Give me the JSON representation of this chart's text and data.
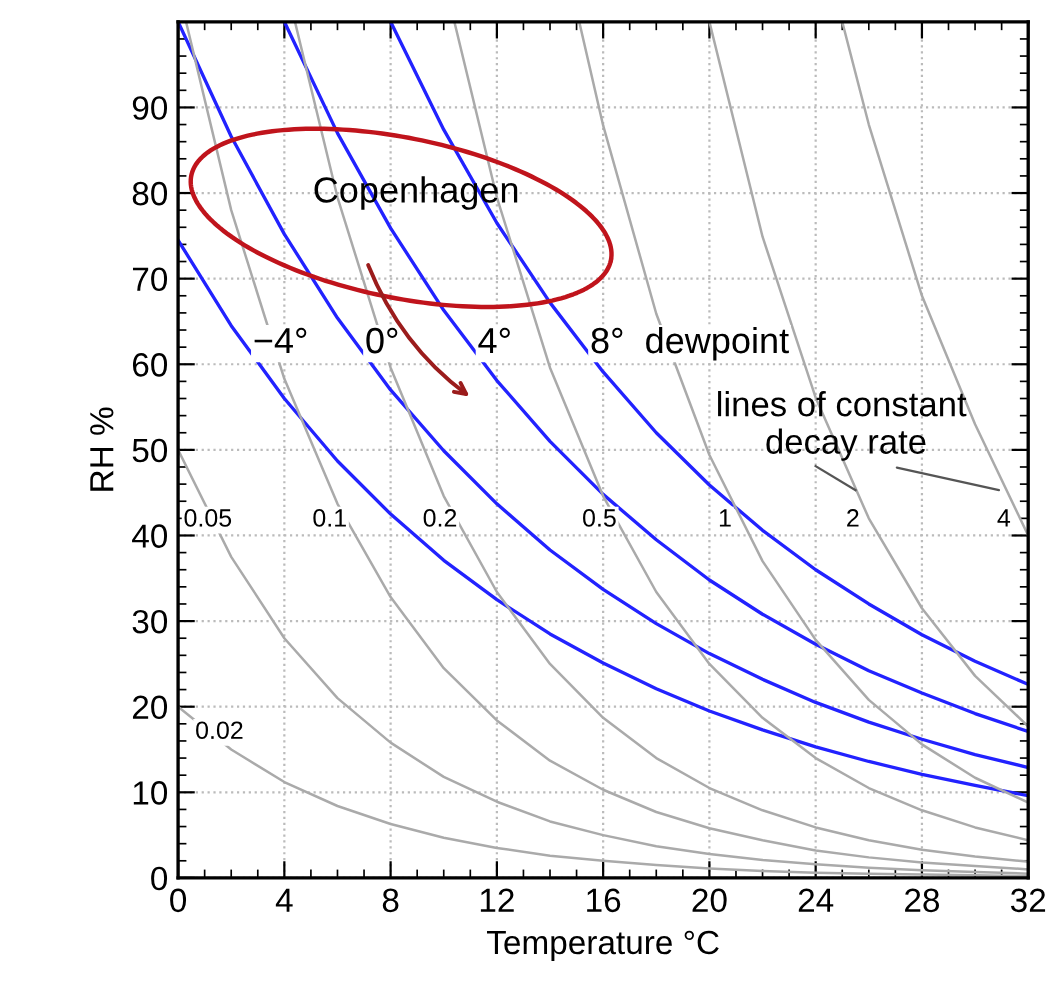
{
  "chart_data": {
    "type": "line",
    "xlabel": "Temperature °C",
    "ylabel": "RH %",
    "xlim": [
      0,
      32
    ],
    "xticks": [
      0,
      4,
      8,
      12,
      16,
      20,
      24,
      28,
      32
    ],
    "ylim": [
      0,
      100
    ],
    "yticks": [
      0,
      10,
      20,
      30,
      40,
      50,
      60,
      70,
      80,
      90
    ],
    "grid": true,
    "legend": false,
    "marker": "none",
    "line_style": "solid",
    "series": [
      {
        "name": "−4°",
        "color": "#2222ff",
        "x": [
          0,
          2,
          4,
          6,
          8,
          10,
          12,
          14,
          16,
          18,
          20,
          22,
          24,
          26,
          28,
          30,
          32
        ],
        "values": [
          74.5,
          64.5,
          56,
          48.7,
          42.5,
          37.1,
          32.5,
          28.5,
          25.1,
          22.1,
          19.5,
          17.3,
          15.3,
          13.6,
          12.1,
          10.8,
          9.6
        ]
      },
      {
        "name": "0°",
        "color": "#2222ff",
        "x": [
          0,
          2,
          4,
          6,
          8,
          10,
          12,
          14,
          16,
          18,
          20,
          22,
          24,
          26,
          28,
          30,
          32
        ],
        "values": [
          100,
          86.6,
          75.2,
          65.4,
          57,
          49.9,
          43.7,
          38.3,
          33.7,
          29.7,
          26.2,
          23.2,
          20.5,
          18.2,
          16.2,
          14.4,
          12.9
        ]
      },
      {
        "name": "4°",
        "color": "#2222ff",
        "x": [
          4,
          6,
          8,
          10,
          12,
          14,
          16,
          18,
          20,
          22,
          24,
          26,
          28,
          30,
          32
        ],
        "values": [
          100,
          87,
          75.9,
          66.3,
          58.1,
          51,
          44.8,
          39.5,
          34.8,
          30.8,
          27.3,
          24.2,
          21.6,
          19.2,
          17.1
        ]
      },
      {
        "name": "8°  dewpoint",
        "color": "#2222ff",
        "x": [
          8,
          10,
          12,
          14,
          16,
          18,
          20,
          22,
          24,
          26,
          28,
          30,
          32
        ],
        "values": [
          100,
          87.4,
          76.5,
          67.2,
          59.1,
          52,
          45.9,
          40.6,
          36,
          32,
          28.4,
          25.3,
          22.6
        ]
      },
      {
        "name": "0.02",
        "color": "#aaaaaa",
        "x": [
          0,
          2,
          4,
          6,
          8,
          10,
          12,
          14,
          16,
          18,
          20,
          22,
          24,
          26,
          28,
          30,
          32
        ],
        "values": [
          20,
          15,
          11.2,
          8.4,
          6.3,
          4.7,
          3.5,
          2.6,
          2,
          1.5,
          1.1,
          0.8,
          0.6,
          0.5,
          0.4,
          0.3,
          0.2
        ]
      },
      {
        "name": "0.05",
        "color": "#aaaaaa",
        "x": [
          0,
          2,
          4,
          6,
          8,
          10,
          12,
          14,
          16,
          18,
          20,
          22,
          24,
          26,
          28,
          30,
          32
        ],
        "values": [
          50,
          37.5,
          28,
          21,
          15.8,
          11.8,
          8.9,
          6.6,
          5,
          3.7,
          2.8,
          2.1,
          1.6,
          1.2,
          0.9,
          0.7,
          0.5
        ]
      },
      {
        "name": "0.1",
        "color": "#aaaaaa",
        "x": [
          0.3,
          2,
          4,
          6,
          8,
          10,
          12,
          14,
          16,
          18,
          20,
          22,
          24,
          26,
          28,
          30,
          32
        ],
        "values": [
          100,
          78,
          58.3,
          43.7,
          32.8,
          24.5,
          18.4,
          13.7,
          10.3,
          7.7,
          5.8,
          4.4,
          3.2,
          2.4,
          1.8,
          1.4,
          1
        ]
      },
      {
        "name": "0.2",
        "color": "#aaaaaa",
        "x": [
          4.4,
          6,
          8,
          10,
          12,
          14,
          16,
          18,
          20,
          22,
          24,
          26,
          28,
          30,
          32
        ],
        "values": [
          100,
          79.5,
          59.6,
          44.6,
          33.4,
          25,
          18.7,
          14,
          10.5,
          7.9,
          5.9,
          4.4,
          3.3,
          2.5,
          1.9
        ]
      },
      {
        "name": "0.5",
        "color": "#aaaaaa",
        "x": [
          10.4,
          12,
          14,
          16,
          18,
          20,
          22,
          24,
          26,
          28,
          30,
          32
        ],
        "values": [
          100,
          79.5,
          59.6,
          44.6,
          33.4,
          25,
          18.7,
          14,
          10.5,
          7.9,
          5.9,
          4.4
        ]
      },
      {
        "name": "1",
        "color": "#aaaaaa",
        "x": [
          15.1,
          16,
          18,
          20,
          22,
          24,
          26,
          28,
          30,
          32
        ],
        "values": [
          100,
          87.9,
          65.9,
          49.4,
          37,
          27.8,
          20.8,
          15.6,
          11.7,
          8.8
        ]
      },
      {
        "name": "2",
        "color": "#aaaaaa",
        "x": [
          20,
          22,
          24,
          26,
          28,
          30,
          32
        ],
        "values": [
          100,
          74.9,
          56.1,
          42,
          31.5,
          23.6,
          17.7
        ]
      },
      {
        "name": "4",
        "color": "#aaaaaa",
        "x": [
          25,
          26,
          28,
          30,
          32
        ],
        "values": [
          100,
          88,
          68,
          53,
          40
        ]
      }
    ],
    "annotations": [
      {
        "text": "lines of constant\n decay rate",
        "x": 30.9,
        "y": 45.3
      },
      "Copenhagen"
    ]
  }
}
